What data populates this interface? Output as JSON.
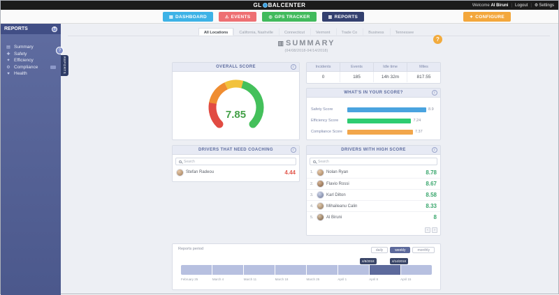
{
  "topbar": {
    "brand_prefix": "GL",
    "brand_suffix": "BALCENTER",
    "welcome": "Welcome",
    "user": "Al Biruni",
    "logout": "Logout",
    "settings": "Settings"
  },
  "icons": {
    "dashboard": "▤",
    "events": "⚠",
    "gps_tracker": "◎",
    "reports": "▥",
    "configure": "✦",
    "settings_gear": "⚙",
    "help": "?",
    "info": "i",
    "title_chart": "▥",
    "summary": "▤",
    "safety": "✚",
    "efficiency": "✦",
    "compliance": "⚙",
    "health": "♥"
  },
  "nav": {
    "buttons": [
      {
        "label": "DASHBOARD",
        "color": "#3db2e6"
      },
      {
        "label": "EVENTS",
        "color": "#ee6f72"
      },
      {
        "label": "GPS TRACKER",
        "color": "#41ba5c"
      },
      {
        "label": "REPORTS",
        "color": "#33406f"
      }
    ],
    "configure": {
      "label": "CONFIGURE",
      "color": "#f3a73c"
    }
  },
  "sidebar": {
    "title": "REPORTS",
    "handle_label": "REPORTS",
    "items": [
      {
        "label": "Summary"
      },
      {
        "label": "Safety"
      },
      {
        "label": "Efficiency"
      },
      {
        "label": "Compliance"
      },
      {
        "label": "Health"
      }
    ]
  },
  "tabs": [
    "All Locations",
    "California, Nashville",
    "Connecticut",
    "Vermont",
    "Trade Co",
    "Business",
    "Tennessee"
  ],
  "summary": {
    "title": "SUMMARY",
    "subtitle": "(04/08/2018-04/14/2018)"
  },
  "overall": {
    "title": "OVERALL SCORE",
    "value": "7.85",
    "value_color": "#43a047"
  },
  "stats": {
    "items": [
      {
        "label": "Incidents",
        "value": "0"
      },
      {
        "label": "Events",
        "value": "185"
      },
      {
        "label": "Idle time",
        "value": "14h 32m"
      },
      {
        "label": "Miles",
        "value": "817.55"
      }
    ]
  },
  "breakdown": {
    "title": "WHAT'S IN YOUR SCORE?",
    "bars": [
      {
        "label": "Safety Score",
        "value": "8.9",
        "color": "#4aa3df",
        "pct": 89
      },
      {
        "label": "Efficiency Score",
        "value": "7.24",
        "color": "#2ecc71",
        "pct": 72
      },
      {
        "label": "Compliance Score",
        "value": "7.37",
        "color": "#f2a64b",
        "pct": 74
      }
    ]
  },
  "coaching": {
    "title": "DRIVERS THAT NEED COACHING",
    "search_placeholder": "Search",
    "score_color": "#e2574c",
    "rows": [
      {
        "name": "Stefan Radeou",
        "score": "4.44"
      }
    ]
  },
  "high_score": {
    "title": "DRIVERS WITH HIGH SCORE",
    "search_placeholder": "Search",
    "score_color": "#3aa76d",
    "rows": [
      {
        "rank": "1.",
        "name": "Nolan Ryan",
        "score": "8.78"
      },
      {
        "rank": "2.",
        "name": "Flavio Rossi",
        "score": "8.67"
      },
      {
        "rank": "3.",
        "name": "Karl Dilton",
        "score": "8.58"
      },
      {
        "rank": "4.",
        "name": "Mihaileanu Calin",
        "score": "8.33"
      },
      {
        "rank": "5.",
        "name": "Al Biruni",
        "score": "8"
      }
    ],
    "pagination": {
      "prev": "‹",
      "next": "›"
    }
  },
  "period": {
    "label": "Reports period",
    "range_buttons": [
      "daily",
      "weekly",
      "monthly"
    ],
    "active_range": "weekly",
    "tooltip_start": "4/8/2018",
    "tooltip_end": "4/14/2018",
    "segment_count": 8,
    "selected_segment_index": 6,
    "segment_color": "#b7c0e0",
    "selected_segment_color": "#5d6a9c",
    "axis_labels": [
      "February 25",
      "March 4",
      "March 11",
      "March 18",
      "March 25",
      "April 1",
      "April 8",
      "April 15"
    ]
  }
}
